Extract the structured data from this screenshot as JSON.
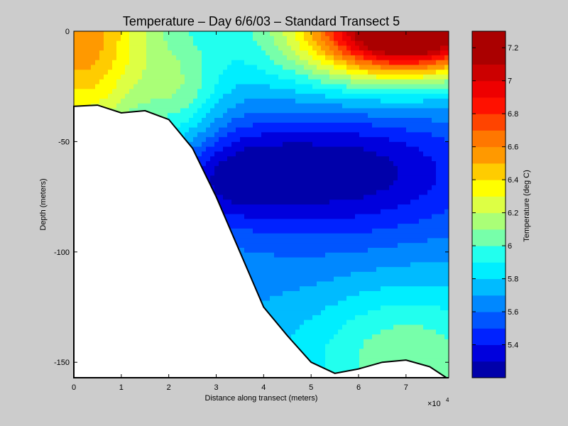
{
  "chart_data": {
    "type": "contour",
    "title": "Temperature – Day 6/6/03 – Standard Transect 5",
    "xlabel": "Distance along transect (meters)",
    "ylabel": "Depth (meters)",
    "x_multiplier_label": "×10",
    "x_multiplier_exponent": "4",
    "x_scale": 10000,
    "xlim": [
      0,
      7.9
    ],
    "ylim": [
      -157,
      0
    ],
    "x_ticks": [
      "0",
      "1",
      "2",
      "3",
      "4",
      "5",
      "6",
      "7"
    ],
    "y_ticks": [
      "0",
      "-50",
      "-100",
      "-150"
    ],
    "colorbar": {
      "label": "Temperature (deg C)",
      "range": [
        5.2,
        7.3
      ],
      "tick_labels": [
        "5.4",
        "5.6",
        "5.8",
        "6",
        "6.2",
        "6.4",
        "6.6",
        "6.8",
        "7",
        "7.2"
      ],
      "levels": [
        5.2,
        5.3,
        5.4,
        5.5,
        5.6,
        5.7,
        5.8,
        5.9,
        6.0,
        6.1,
        6.2,
        6.3,
        6.4,
        6.5,
        6.6,
        6.7,
        6.8,
        6.9,
        7.0,
        7.1,
        7.2,
        7.3
      ],
      "colors": [
        "#0000aa",
        "#0000dd",
        "#0022ff",
        "#0055ff",
        "#0088ff",
        "#00bbff",
        "#00eeff",
        "#22ffee",
        "#77ffaa",
        "#aaff77",
        "#ddff44",
        "#ffff00",
        "#ffcc00",
        "#ff9900",
        "#ff7700",
        "#ff4400",
        "#ff1100",
        "#ee0000",
        "#cc0000",
        "#aa0000",
        "#aa0000"
      ]
    },
    "bottom_profile": {
      "x": [
        0,
        0.5,
        1.0,
        1.5,
        2.0,
        2.5,
        3.0,
        3.5,
        4.0,
        4.5,
        5.0,
        5.5,
        6.0,
        6.5,
        7.0,
        7.5,
        7.85
      ],
      "depth": [
        -34,
        -33.5,
        -37,
        -36,
        -40,
        -53,
        -75,
        -100,
        -125,
        -138,
        -150,
        -155,
        -153,
        -150,
        -149,
        -152,
        -157
      ]
    },
    "grid": false
  }
}
